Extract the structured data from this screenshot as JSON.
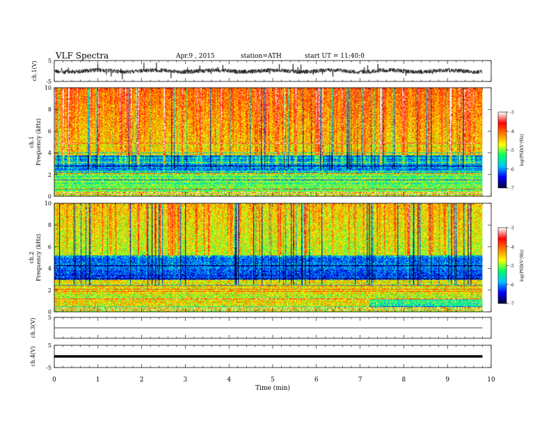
{
  "header": {
    "title": "VLF Spectra",
    "date": "Apr.9 , 2015",
    "station": "station=ATH",
    "start": "start UT = 11:40:0"
  },
  "chart_data": {
    "type": "heatmap",
    "title": "VLF Spectra",
    "x": {
      "label": "Time (min)",
      "range": [
        0,
        10
      ],
      "ticks": [
        0,
        1,
        2,
        3,
        4,
        5,
        6,
        7,
        8,
        9,
        10
      ],
      "data_end": 9.8
    },
    "panels": [
      {
        "id": "ch1-waveform",
        "type": "line",
        "ylabel": "ch.1(V)",
        "ylim": [
          -5,
          5
        ],
        "ticks": [
          "5",
          "-5"
        ],
        "baseline": 0
      },
      {
        "id": "ch1-spectrogram",
        "type": "heatmap",
        "channel": "ch.1",
        "ylabel": "Frequency (kHz)",
        "ylim": [
          0,
          10
        ],
        "ticks": [
          "0",
          "2",
          "4",
          "6",
          "8",
          "10"
        ]
      },
      {
        "id": "ch2-spectrogram",
        "type": "heatmap",
        "channel": "ch.2",
        "ylabel": "Frequency (kHz)",
        "ylim": [
          0,
          10
        ],
        "ticks": [
          "0",
          "2",
          "4",
          "6",
          "8",
          "10"
        ]
      },
      {
        "id": "ch3-waveform",
        "type": "line",
        "ylabel": "ch.3(V)",
        "ylim": [
          -5,
          5
        ],
        "ticks": [
          "5"
        ],
        "baseline": 0
      },
      {
        "id": "ch4-waveform",
        "type": "line",
        "ylabel": "ch.4(V)",
        "ylim": [
          -5,
          5
        ],
        "ticks": [
          "5",
          "-5"
        ],
        "baseline": 0
      }
    ],
    "colorbar": {
      "label": "log(PSD(V²/Hz)",
      "range": [
        -7,
        -3
      ],
      "ticks": [
        "-3",
        "-4",
        "-5",
        "-6",
        "-7"
      ],
      "colors": [
        "#000040",
        "#0000ff",
        "#00c8ff",
        "#00ff64",
        "#ffff00",
        "#ff8000",
        "#ff0000",
        "#ffffff"
      ]
    }
  }
}
